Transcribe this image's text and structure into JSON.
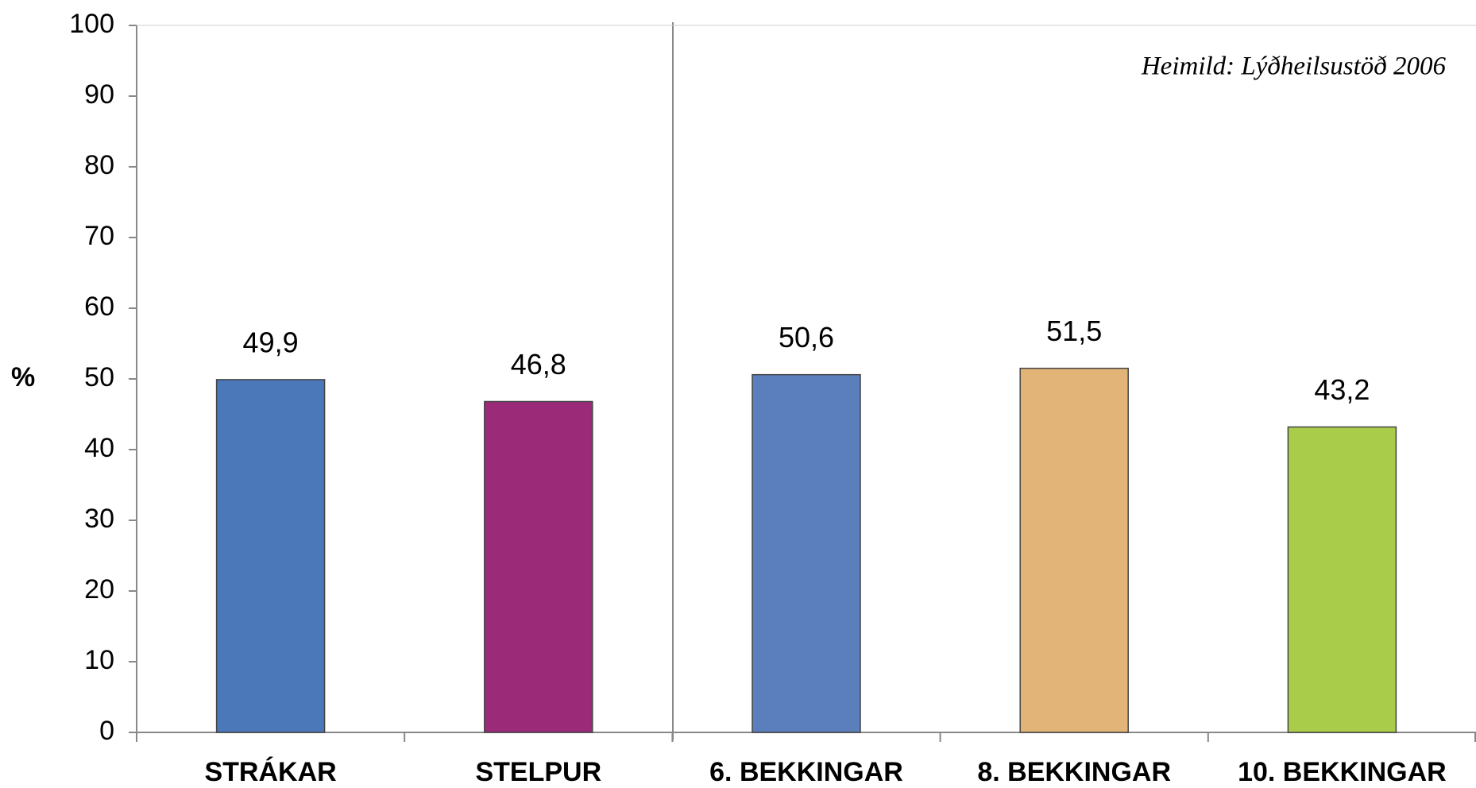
{
  "chart_data": {
    "type": "bar",
    "y_label": "%",
    "annotation": "Heimild:  Lýðheilsustöð 2006",
    "categories": [
      "STRÁKAR",
      "STELPUR",
      "6. BEKKINGAR",
      "8. BEKKINGAR",
      "10. BEKKINGAR"
    ],
    "values": [
      49.9,
      46.8,
      50.6,
      51.5,
      43.2
    ],
    "value_labels": [
      "49,9",
      "46,8",
      "50,6",
      "51,5",
      "43,2"
    ],
    "colors": [
      "#4a78b8",
      "#9b2a78",
      "#5b7fbd",
      "#e2b478",
      "#a9cc4a"
    ],
    "ylim": [
      0,
      100
    ],
    "yticks": [
      0,
      10,
      20,
      30,
      40,
      50,
      60,
      70,
      80,
      90,
      100
    ]
  }
}
